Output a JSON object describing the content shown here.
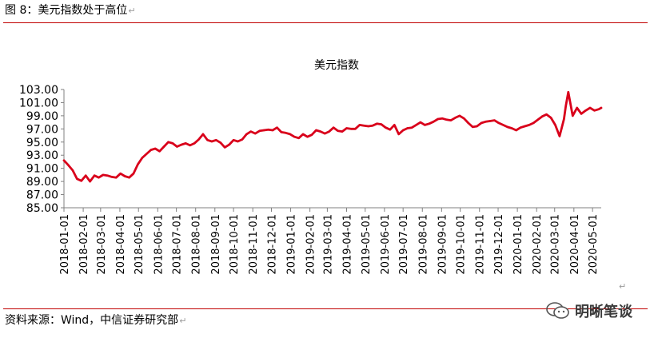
{
  "caption": "图 8：美元指数处于高位",
  "source": "资料来源：Wind，中信证券研究部",
  "watermark": "明晰笔谈",
  "colors": {
    "series": "#d9001b",
    "rule": "#c00000",
    "axis": "#808080"
  },
  "chart_data": {
    "type": "line",
    "title": "美元指数",
    "xlabel": "",
    "ylabel": "",
    "ylim": [
      85,
      103
    ],
    "yticks": [
      "85.00",
      "87.00",
      "89.00",
      "91.00",
      "93.00",
      "95.00",
      "97.00",
      "99.00",
      "101.00",
      "103.00"
    ],
    "xlim": [
      "2018-01-01",
      "2020-05-15"
    ],
    "xticks": [
      "2018-01-01",
      "2018-02-01",
      "2018-03-01",
      "2018-04-01",
      "2018-05-01",
      "2018-06-01",
      "2018-07-01",
      "2018-08-01",
      "2018-09-01",
      "2018-10-01",
      "2018-11-01",
      "2018-12-01",
      "2019-01-01",
      "2019-02-01",
      "2019-03-01",
      "2019-04-01",
      "2019-05-01",
      "2019-06-01",
      "2019-07-01",
      "2019-08-01",
      "2019-09-01",
      "2019-10-01",
      "2019-11-01",
      "2019-12-01",
      "2020-01-01",
      "2020-02-01",
      "2020-03-01",
      "2020-04-01",
      "2020-05-01"
    ],
    "grid": false,
    "legend": "none",
    "series": [
      {
        "x": [
          "2018-01-01",
          "2018-01-08",
          "2018-01-15",
          "2018-01-22",
          "2018-01-29",
          "2018-02-05",
          "2018-02-12",
          "2018-02-19",
          "2018-02-26",
          "2018-03-05",
          "2018-03-12",
          "2018-03-19",
          "2018-03-26",
          "2018-04-02",
          "2018-04-09",
          "2018-04-16",
          "2018-04-23",
          "2018-04-30",
          "2018-05-07",
          "2018-05-14",
          "2018-05-21",
          "2018-05-28",
          "2018-06-04",
          "2018-06-11",
          "2018-06-18",
          "2018-06-25",
          "2018-07-02",
          "2018-07-09",
          "2018-07-16",
          "2018-07-23",
          "2018-07-30",
          "2018-08-06",
          "2018-08-13",
          "2018-08-20",
          "2018-08-27",
          "2018-09-03",
          "2018-09-10",
          "2018-09-17",
          "2018-09-24",
          "2018-10-01",
          "2018-10-08",
          "2018-10-15",
          "2018-10-22",
          "2018-10-29",
          "2018-11-05",
          "2018-11-12",
          "2018-11-19",
          "2018-11-26",
          "2018-12-03",
          "2018-12-10",
          "2018-12-17",
          "2018-12-24",
          "2018-12-31",
          "2019-01-07",
          "2019-01-14",
          "2019-01-21",
          "2019-01-28",
          "2019-02-04",
          "2019-02-11",
          "2019-02-18",
          "2019-02-25",
          "2019-03-04",
          "2019-03-11",
          "2019-03-18",
          "2019-03-25",
          "2019-04-01",
          "2019-04-08",
          "2019-04-15",
          "2019-04-22",
          "2019-04-29",
          "2019-05-06",
          "2019-05-13",
          "2019-05-20",
          "2019-05-27",
          "2019-06-03",
          "2019-06-10",
          "2019-06-17",
          "2019-06-24",
          "2019-07-01",
          "2019-07-08",
          "2019-07-15",
          "2019-07-22",
          "2019-07-29",
          "2019-08-05",
          "2019-08-12",
          "2019-08-19",
          "2019-08-26",
          "2019-09-02",
          "2019-09-09",
          "2019-09-16",
          "2019-09-23",
          "2019-09-30",
          "2019-10-07",
          "2019-10-14",
          "2019-10-21",
          "2019-10-28",
          "2019-11-04",
          "2019-11-11",
          "2019-11-18",
          "2019-11-25",
          "2019-12-02",
          "2019-12-09",
          "2019-12-16",
          "2019-12-23",
          "2019-12-30",
          "2020-01-06",
          "2020-01-13",
          "2020-01-20",
          "2020-01-27",
          "2020-02-03",
          "2020-02-10",
          "2020-02-17",
          "2020-02-24",
          "2020-03-02",
          "2020-03-09",
          "2020-03-16",
          "2020-03-19",
          "2020-03-23",
          "2020-03-30",
          "2020-04-06",
          "2020-04-13",
          "2020-04-20",
          "2020-04-27",
          "2020-05-04",
          "2020-05-11",
          "2020-05-15"
        ],
        "values": [
          92.2,
          91.5,
          90.7,
          89.4,
          89.1,
          89.9,
          89.0,
          89.9,
          89.6,
          90.0,
          89.9,
          89.7,
          89.6,
          90.2,
          89.8,
          89.6,
          90.2,
          91.6,
          92.6,
          93.2,
          93.8,
          94.0,
          93.6,
          94.3,
          95.0,
          94.8,
          94.3,
          94.6,
          94.8,
          94.5,
          94.8,
          95.4,
          96.2,
          95.3,
          95.1,
          95.3,
          94.9,
          94.2,
          94.6,
          95.3,
          95.1,
          95.4,
          96.2,
          96.6,
          96.3,
          96.7,
          96.8,
          96.9,
          96.8,
          97.2,
          96.5,
          96.4,
          96.2,
          95.8,
          95.6,
          96.2,
          95.8,
          96.1,
          96.8,
          96.6,
          96.3,
          96.6,
          97.2,
          96.7,
          96.6,
          97.1,
          97.0,
          97.0,
          97.6,
          97.5,
          97.4,
          97.5,
          97.8,
          97.7,
          97.2,
          96.9,
          97.6,
          96.2,
          96.8,
          97.1,
          97.2,
          97.6,
          98.0,
          97.6,
          97.8,
          98.1,
          98.5,
          98.6,
          98.4,
          98.3,
          98.7,
          99.0,
          98.6,
          97.9,
          97.3,
          97.4,
          97.9,
          98.1,
          98.2,
          98.3,
          97.9,
          97.6,
          97.3,
          97.1,
          96.8,
          97.2,
          97.4,
          97.6,
          97.9,
          98.4,
          98.9,
          99.2,
          98.7,
          97.6,
          95.9,
          98.5,
          100.5,
          102.6,
          99.0,
          100.2,
          99.3,
          99.8,
          100.2,
          99.8,
          100.0,
          100.2
        ]
      }
    ]
  }
}
